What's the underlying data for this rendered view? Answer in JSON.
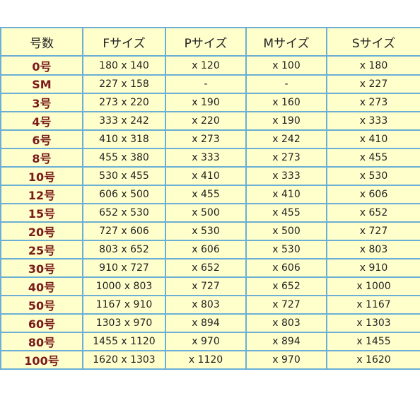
{
  "headers": [
    "号数",
    "Fサイズ",
    "Pサイズ",
    "Mサイズ",
    "Sサイズ"
  ],
  "rows": [
    [
      "0号",
      "180 x 140",
      "x 120",
      "x 100",
      "x 180"
    ],
    [
      "SM",
      "227 x 158",
      "-",
      "-",
      "x 227"
    ],
    [
      "3号",
      "273 x 220",
      "x 190",
      "x 160",
      "x 273"
    ],
    [
      "4号",
      "333 x 242",
      "x 220",
      "x 190",
      "x 333"
    ],
    [
      "6号",
      "410 x 318",
      "x 273",
      "x 242",
      "x 410"
    ],
    [
      "8号",
      "455 x 380",
      "x 333",
      "x 273",
      "x 455"
    ],
    [
      "10号",
      "530 x 455",
      "x 410",
      "x 333",
      "x 530"
    ],
    [
      "12号",
      "606 x 500",
      "x 455",
      "x 410",
      "x 606"
    ],
    [
      "15号",
      "652 x 530",
      "x 500",
      "x 455",
      "x 652"
    ],
    [
      "20号",
      "727 x 606",
      "x 530",
      "x 500",
      "x 727"
    ],
    [
      "25号",
      "803 x 652",
      "x 606",
      "x 530",
      "x 803"
    ],
    [
      "30号",
      "910 x 727",
      "x 652",
      "x 606",
      "x 910"
    ],
    [
      "40号",
      "1000 x 803",
      "x 727",
      "x 652",
      "x 1000"
    ],
    [
      "50号",
      "1167 x 910",
      "x 803",
      "x 727",
      "x 1167"
    ],
    [
      "60号",
      "1303 x 970",
      "x 894",
      "x 803",
      "x 1303"
    ],
    [
      "80号",
      "1455 x 1120",
      "x 970",
      "x 894",
      "x 1455"
    ],
    [
      "100号",
      "1620 x 1303",
      "x 1120",
      "x 970",
      "x 1620"
    ]
  ],
  "colors": {
    "background": "#ffffcc",
    "border": "#6baed6",
    "size_label": "#7a1a1a",
    "text": "#222222"
  }
}
